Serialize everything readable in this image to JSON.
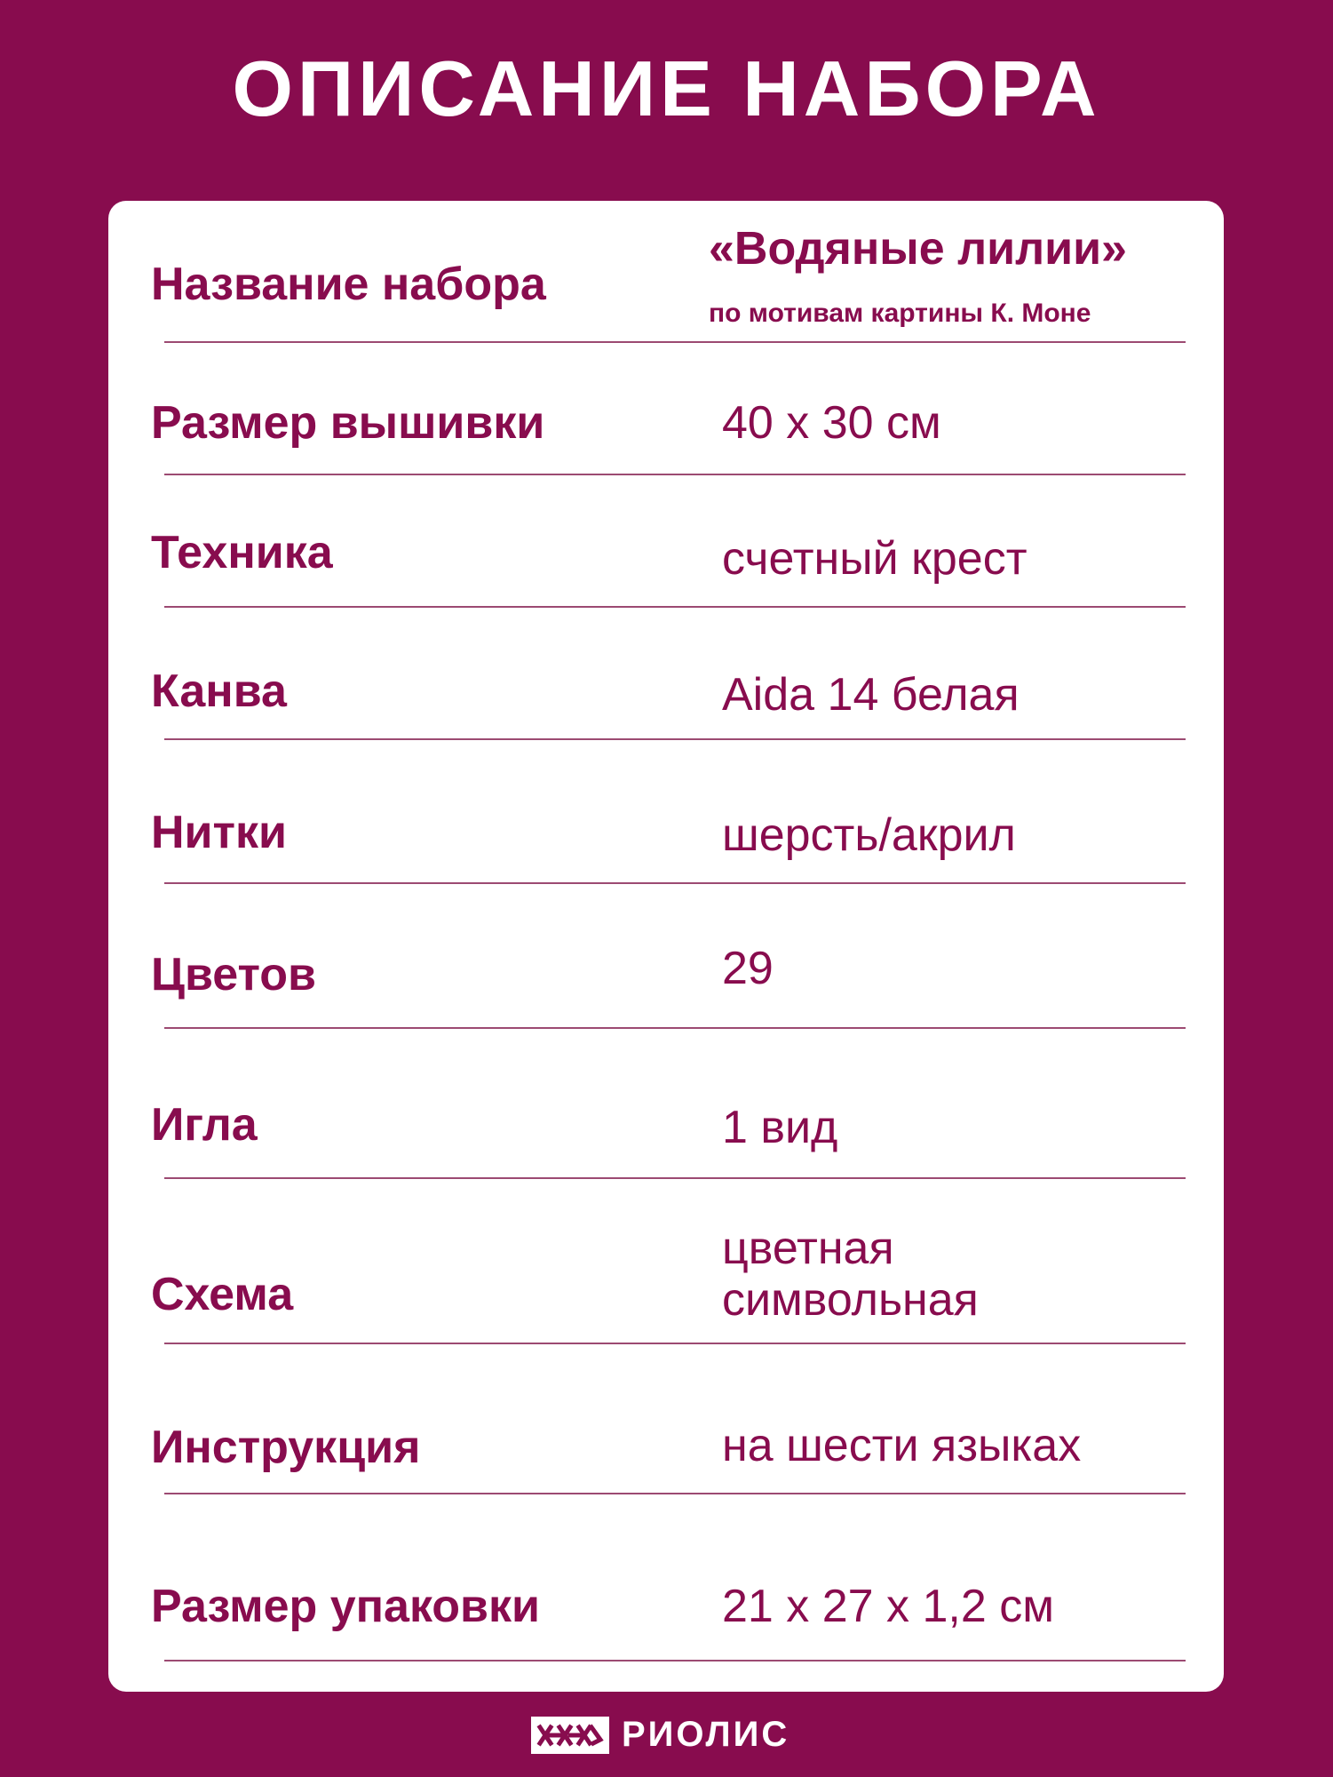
{
  "title": "ОПИСАНИЕ НАБОРА",
  "rows": [
    {
      "label": "Название набора",
      "value": "«Водяные лилии»",
      "subvalue": "по мотивам картины К. Моне"
    },
    {
      "label": "Размер вышивки",
      "value": "40 х 30 см"
    },
    {
      "label": "Техника",
      "value": "счетный крест"
    },
    {
      "label": "Канва",
      "value": "Aida 14 белая"
    },
    {
      "label": "Нитки",
      "value": "шерсть/акрил"
    },
    {
      "label": "Цветов",
      "value": "29"
    },
    {
      "label": "Игла",
      "value": "1 вид"
    },
    {
      "label": "Схема",
      "value": "цветная",
      "value2": "символьная"
    },
    {
      "label": "Инструкция",
      "value": "на шести языках"
    },
    {
      "label": "Размер упаковки",
      "value": "21 х 27 х 1,2 см"
    }
  ],
  "brand": {
    "name": "РИОЛИС",
    "logo_icon": "riolis-ornament-logo"
  },
  "colors": {
    "background": "#880c4e",
    "card": "#ffffff",
    "text": "#880c4e"
  }
}
